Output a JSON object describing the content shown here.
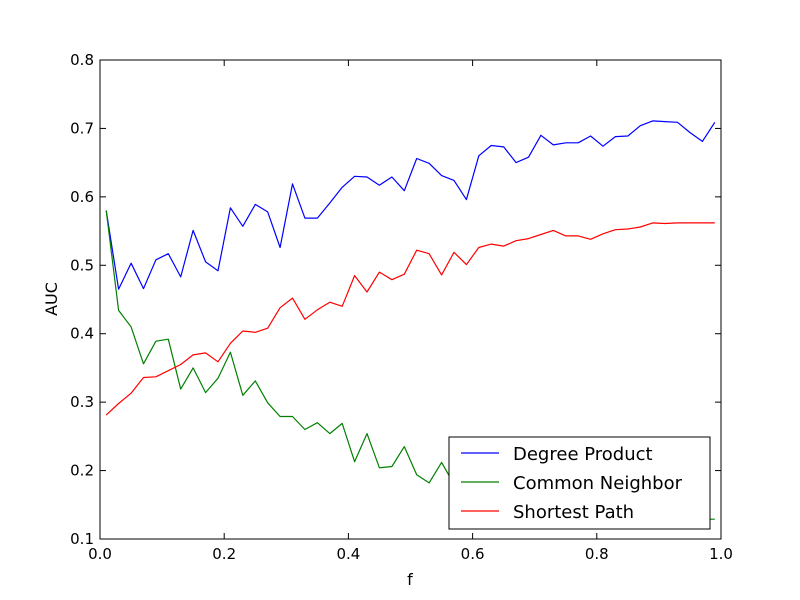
{
  "chart_data": {
    "type": "line",
    "title": "",
    "xlabel": "f",
    "ylabel": "AUC",
    "xlim": [
      0,
      1
    ],
    "ylim": [
      0.1,
      0.8
    ],
    "xticks": [
      "0.0",
      "0.2",
      "0.4",
      "0.6",
      "0.8",
      "1.0"
    ],
    "yticks": [
      "0.1",
      "0.2",
      "0.3",
      "0.4",
      "0.5",
      "0.6",
      "0.7",
      "0.8"
    ],
    "grid": false,
    "legend_position": "bottom-right",
    "x": [
      0.01,
      0.03,
      0.05,
      0.07,
      0.09,
      0.11,
      0.13,
      0.15,
      0.17,
      0.19,
      0.21,
      0.23,
      0.25,
      0.27,
      0.29,
      0.31,
      0.33,
      0.35,
      0.37,
      0.39,
      0.41,
      0.43,
      0.45,
      0.47,
      0.49,
      0.51,
      0.53,
      0.55,
      0.57,
      0.59,
      0.61,
      0.63,
      0.65,
      0.67,
      0.69,
      0.71,
      0.73,
      0.75,
      0.77,
      0.79,
      0.81,
      0.83,
      0.85,
      0.87,
      0.89,
      0.91,
      0.93,
      0.95,
      0.97,
      0.99
    ],
    "series": [
      {
        "name": "Degree Product",
        "color": "#0000ff",
        "values": [
          0.58,
          0.465,
          0.503,
          0.466,
          0.508,
          0.517,
          0.483,
          0.551,
          0.505,
          0.492,
          0.584,
          0.557,
          0.589,
          0.578,
          0.526,
          0.619,
          0.569,
          0.569,
          0.591,
          0.614,
          0.63,
          0.629,
          0.617,
          0.629,
          0.609,
          0.656,
          0.649,
          0.631,
          0.624,
          0.596,
          0.66,
          0.675,
          0.673,
          0.65,
          0.658,
          0.69,
          0.676,
          0.679,
          0.679,
          0.689,
          0.674,
          0.688,
          0.689,
          0.704,
          0.711,
          0.71,
          0.709,
          0.694,
          0.681,
          0.709
        ]
      },
      {
        "name": "Common Neighbor",
        "color": "#008000",
        "values": [
          0.58,
          0.434,
          0.41,
          0.356,
          0.389,
          0.392,
          0.319,
          0.35,
          0.314,
          0.335,
          0.373,
          0.31,
          0.331,
          0.299,
          0.279,
          0.279,
          0.26,
          0.27,
          0.254,
          0.269,
          0.213,
          0.254,
          0.204,
          0.206,
          0.235,
          0.194,
          0.182,
          0.212,
          0.18,
          0.17,
          0.16,
          0.155,
          0.15,
          0.148,
          0.145,
          0.142,
          0.14,
          0.138,
          0.136,
          0.135,
          0.134,
          0.133,
          0.132,
          0.131,
          0.13,
          0.13,
          0.129,
          0.129,
          0.129,
          0.129
        ]
      },
      {
        "name": "Shortest Path",
        "color": "#ff0000",
        "values": [
          0.281,
          0.298,
          0.313,
          0.336,
          0.337,
          0.346,
          0.355,
          0.369,
          0.372,
          0.359,
          0.386,
          0.404,
          0.402,
          0.408,
          0.438,
          0.452,
          0.421,
          0.435,
          0.446,
          0.44,
          0.485,
          0.461,
          0.49,
          0.479,
          0.487,
          0.522,
          0.517,
          0.486,
          0.519,
          0.501,
          0.526,
          0.531,
          0.528,
          0.536,
          0.539,
          0.545,
          0.551,
          0.543,
          0.543,
          0.538,
          0.546,
          0.552,
          0.553,
          0.556,
          0.562,
          0.561,
          0.562,
          0.562,
          0.562,
          0.562
        ]
      }
    ]
  }
}
